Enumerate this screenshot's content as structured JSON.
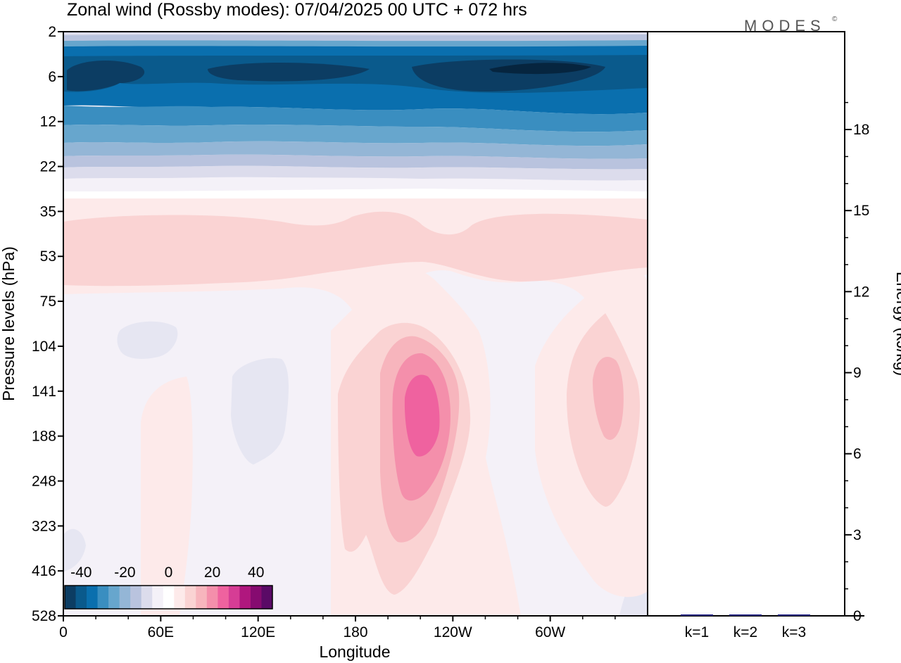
{
  "chart_data": [
    {
      "type": "heatmap",
      "title": "Zonal wind (Rossby modes):  07/04/2025  00 UTC  + 072 hrs",
      "xlabel": "Longitude",
      "ylabel": "Pressure levels (hPa)",
      "x_ticks": [
        "0",
        "60E",
        "120E",
        "180",
        "120W",
        "60W"
      ],
      "x_tick_degrees": [
        0,
        60,
        120,
        180,
        240,
        300
      ],
      "xlim": [
        0,
        360
      ],
      "y_ticks": [
        "2",
        "6",
        "12",
        "22",
        "35",
        "53",
        "75",
        "104",
        "141",
        "188",
        "248",
        "323",
        "416",
        "528"
      ],
      "y_levels_top_to_bottom": [
        2,
        6,
        12,
        22,
        35,
        53,
        75,
        104,
        141,
        188,
        248,
        323,
        416,
        528
      ],
      "colorbar": {
        "tick_labels": [
          "-40",
          "-20",
          "0",
          "20",
          "40"
        ],
        "tick_values": [
          -40,
          -20,
          0,
          20,
          40
        ],
        "levels": [
          -45,
          -40,
          -35,
          -30,
          -25,
          -20,
          -15,
          -10,
          -5,
          0,
          5,
          10,
          15,
          20,
          25,
          30,
          35,
          40,
          45
        ],
        "colors": [
          "#0c3d63",
          "#0a5a8c",
          "#0a6fae",
          "#3a8ec0",
          "#67a6cd",
          "#94b6d6",
          "#b9c3de",
          "#dcdcec",
          "#f4f1f8",
          "#ffffff",
          "#fdeaea",
          "#fad3d3",
          "#f7b5bd",
          "#f48fab",
          "#ef629f",
          "#d63d95",
          "#b0177e",
          "#860b70",
          "#5a0a66"
        ]
      },
      "field_description_omitted": true,
      "contour_features": [
        {
          "lon": [
            0,
            360
          ],
          "level": [
            4,
            8
          ],
          "value": -40
        },
        {
          "lon": [
            0,
            360
          ],
          "level": [
            8,
            14
          ],
          "value": -25
        },
        {
          "lon": [
            0,
            360
          ],
          "level": [
            14,
            22
          ],
          "value": -10
        },
        {
          "lon": [
            0,
            360
          ],
          "level": [
            38,
            60
          ],
          "value": 7
        },
        {
          "lon": [
            195,
            225
          ],
          "level": [
            120,
            250
          ],
          "value": 22
        },
        {
          "lon": [
            330,
            345
          ],
          "level": [
            110,
            200
          ],
          "value": 12
        },
        {
          "lon": [
            100,
            140
          ],
          "level": [
            110,
            200
          ],
          "value": -3
        }
      ]
    },
    {
      "type": "bar",
      "ylabel": "Energy (kJ/kg)",
      "categories": [
        "k=1",
        "k=2",
        "k=3"
      ],
      "values": [
        0.05,
        0.02,
        0.03
      ],
      "ylim": [
        0,
        20
      ],
      "y_ticks": [
        "0",
        "3",
        "6",
        "9",
        "12",
        "15",
        "18"
      ],
      "y_tick_values": [
        0,
        3,
        6,
        9,
        12,
        15,
        18
      ],
      "bar_color": "#1a1a80"
    }
  ],
  "brand": {
    "label": "MODES",
    "mark": "©"
  }
}
